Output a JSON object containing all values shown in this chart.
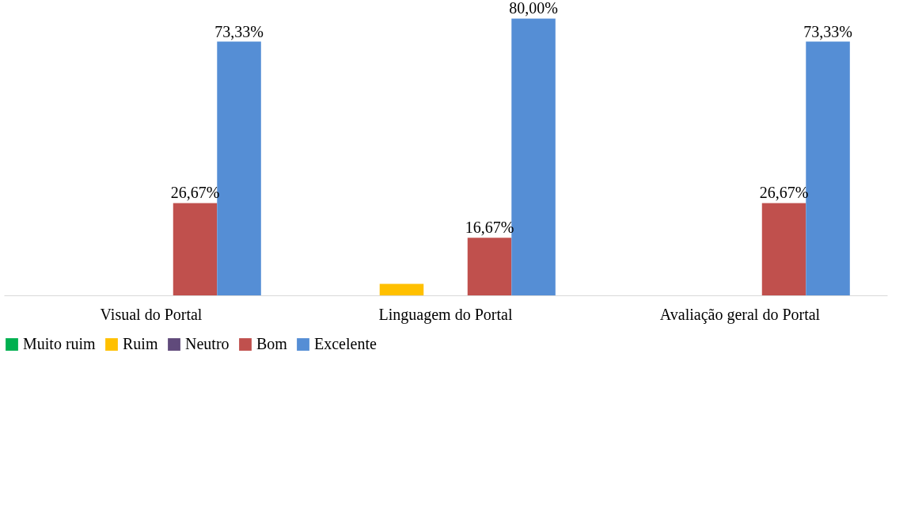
{
  "chart_data": {
    "type": "bar",
    "categories": [
      "Visual do Portal",
      "Linguagem do Portal",
      "Avaliação geral do Portal"
    ],
    "series": [
      {
        "name": "Muito ruim",
        "color": "#00b050",
        "values": [
          0,
          0,
          0
        ],
        "value_labels": [
          null,
          null,
          null
        ]
      },
      {
        "name": "Ruim",
        "color": "#ffc000",
        "values": [
          0,
          3.33,
          0
        ],
        "value_labels": [
          null,
          null,
          null
        ]
      },
      {
        "name": "Neutro",
        "color": "#604a7b",
        "values": [
          0,
          0,
          0
        ],
        "value_labels": [
          null,
          null,
          null
        ]
      },
      {
        "name": "Bom",
        "color": "#c0504d",
        "values": [
          26.67,
          16.67,
          26.67
        ],
        "value_labels": [
          "26,67%",
          "16,67%",
          "26,67%"
        ]
      },
      {
        "name": "Excelente",
        "color": "#558ed5",
        "values": [
          73.33,
          80,
          73.33
        ],
        "value_labels": [
          "73,33%",
          "80,00%",
          "73,33%"
        ]
      }
    ],
    "legend": "bottom",
    "grid": false
  }
}
